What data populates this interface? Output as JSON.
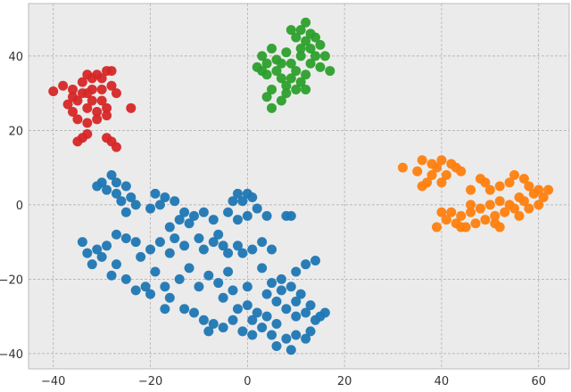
{
  "chart_data": {
    "type": "scatter",
    "xlim": [
      -45.1,
      66.3
    ],
    "ylim": [
      -44.1,
      54.1
    ],
    "xticks": [
      {
        "value": -40,
        "label": "−40"
      },
      {
        "value": -20,
        "label": "−20"
      },
      0,
      20,
      40,
      60
    ],
    "yticks": [
      {
        "value": -40,
        "label": "−40"
      },
      {
        "value": -20,
        "label": "−20"
      },
      0,
      20,
      40
    ],
    "grid": true,
    "series": [
      {
        "color": "#1f77b4",
        "x": [
          -28,
          -27,
          -30,
          -29,
          -25,
          -24,
          -26,
          -31,
          -27,
          -25,
          -23,
          -20,
          -18,
          -17,
          -19,
          -15,
          -13,
          -11,
          -12,
          -14,
          -16,
          -9,
          -7,
          -6,
          -4,
          -3,
          -1,
          0,
          -2,
          1,
          2,
          0,
          -2,
          4,
          8,
          9,
          -34,
          -33,
          -31,
          -30,
          -29,
          -27,
          -25,
          -23,
          -22,
          -20,
          -18,
          -16,
          -15,
          -13,
          -10,
          -9,
          -7,
          -5,
          -4,
          -2,
          -1,
          1,
          3,
          5,
          -32,
          -28,
          -25,
          -21,
          -19,
          -17,
          -14,
          -12,
          -10,
          -8,
          -6,
          -4,
          -3,
          0,
          -5,
          -20,
          -23,
          -16,
          -17,
          -13,
          -11,
          -9,
          -7,
          -5,
          -3,
          -8,
          -1,
          1,
          3,
          5,
          6,
          8,
          9,
          10,
          12,
          13,
          15,
          16,
          14,
          12,
          13,
          11,
          9,
          7,
          5,
          3,
          4,
          6,
          8,
          10,
          2,
          0,
          -2,
          1,
          4,
          7,
          10,
          12,
          14,
          10,
          6,
          -27
        ],
        "values": [
          8,
          6,
          6,
          4,
          5,
          2,
          1,
          5,
          3,
          -2,
          0,
          -1,
          0,
          2,
          3,
          1,
          -2,
          -3,
          -5,
          -4,
          -6,
          -2,
          -4,
          -8,
          -2,
          1,
          1,
          3,
          3,
          2,
          -1,
          -3,
          -4,
          -3,
          -3,
          -3,
          -10,
          -13,
          -12,
          -14,
          -11,
          -8,
          -9,
          -10,
          -14,
          -12,
          -10,
          -13,
          -9,
          -11,
          -9,
          -12,
          -10,
          -11,
          -13,
          -11,
          -13,
          -12,
          -10,
          -12,
          -16,
          -19,
          -20,
          -22,
          -18,
          -22,
          -20,
          -17,
          -22,
          -19,
          -21,
          -18,
          -23,
          -22,
          -25,
          -24,
          -23,
          -25,
          -28,
          -28,
          -29,
          -31,
          -32,
          -33,
          -31,
          -34,
          -34,
          -35,
          -33,
          -35,
          -38,
          -36,
          -39,
          -35,
          -36,
          -34,
          -30,
          -29,
          -31,
          -29,
          -27,
          -24,
          -22,
          -20,
          -21,
          -17,
          -24,
          -26,
          -28,
          -30,
          -29,
          -27,
          -28,
          -31,
          -30,
          -23,
          -18,
          -16,
          -15,
          -26,
          -32,
          -16
        ]
      },
      {
        "color": "#ff7f0e",
        "x": [
          32,
          36,
          38,
          40,
          42,
          43,
          44,
          38,
          37,
          36,
          40,
          41,
          46,
          48,
          49,
          50,
          52,
          54,
          55,
          57,
          58,
          59,
          61,
          60,
          62,
          56,
          54,
          53,
          51,
          49,
          47,
          45,
          43,
          41,
          40,
          39,
          42,
          44,
          46,
          48,
          50,
          52,
          55,
          57,
          58,
          52,
          51,
          56,
          60,
          39,
          35,
          44,
          46
        ],
        "values": [
          10,
          12,
          11,
          12,
          11,
          10,
          9,
          8,
          6,
          5,
          6,
          8,
          4,
          7,
          6,
          4,
          5,
          6,
          8,
          7,
          5,
          3,
          2,
          0,
          4,
          2,
          0,
          -2,
          -3,
          -4,
          -5,
          -6,
          -5,
          -4,
          -2,
          -6,
          -2,
          -3,
          -2,
          -1,
          0,
          1,
          -1,
          1,
          -1,
          -6,
          -5,
          -3,
          4,
          10,
          9,
          -6,
          0
        ]
      },
      {
        "color": "#2ca02c",
        "x": [
          12,
          11,
          13,
          9,
          10,
          14,
          12,
          15,
          13,
          16,
          17,
          15,
          11,
          8,
          5,
          3,
          4,
          2,
          4,
          6,
          7,
          8,
          9,
          10,
          11,
          12,
          13,
          9,
          6,
          5,
          8,
          4,
          5,
          7,
          10,
          3,
          14,
          11,
          7,
          12
        ],
        "values": [
          49,
          47,
          46,
          47,
          45,
          45,
          44,
          43,
          42,
          40,
          36,
          37,
          40,
          41,
          42,
          40,
          38,
          37,
          35,
          36,
          34,
          32,
          34,
          36,
          33,
          35,
          38,
          38,
          39,
          31,
          30,
          29,
          26,
          28,
          31,
          36,
          40,
          42,
          38,
          31
        ]
      },
      {
        "color": "#d62728",
        "x": [
          -40,
          -37,
          -36,
          -35,
          -34,
          -33,
          -32,
          -31,
          -34,
          -33,
          -31,
          -29,
          -30,
          -28,
          -27,
          -32,
          -35,
          -33,
          -31,
          -29,
          -30,
          -36,
          -33,
          -28,
          -32,
          -34,
          -33,
          -35,
          -29,
          -28,
          -27,
          -24,
          -38,
          -36,
          -30,
          -29
        ],
        "values": [
          30.5,
          27,
          25,
          28,
          30,
          26,
          28,
          25,
          33,
          35,
          35,
          36,
          34,
          32,
          30,
          31,
          23,
          22,
          23,
          26,
          28,
          29,
          30,
          36,
          34,
          18,
          19,
          17,
          18,
          17,
          15.5,
          26,
          32,
          31,
          31,
          24
        ]
      }
    ]
  }
}
